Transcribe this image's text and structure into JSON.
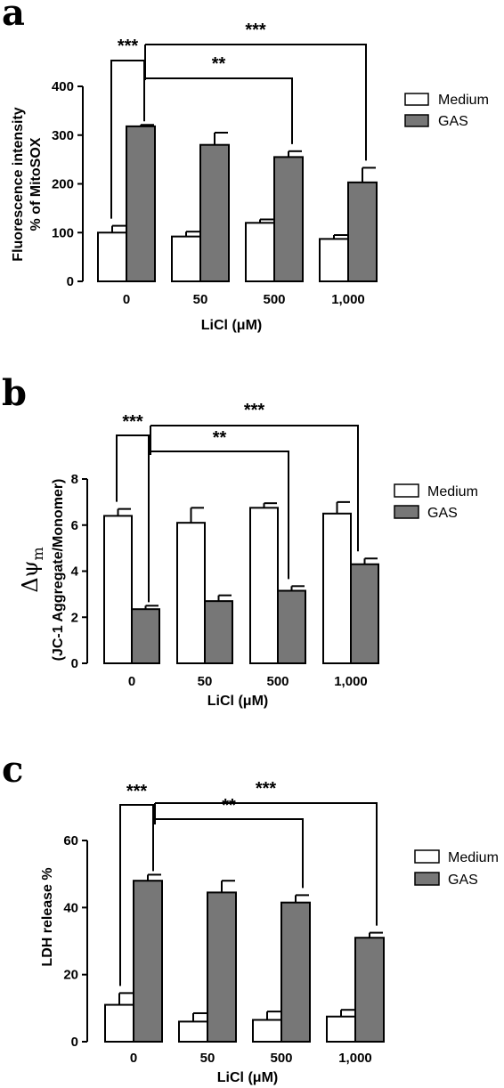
{
  "colors": {
    "medium": "#ffffff",
    "gas": "#777777",
    "stroke": "#000000"
  },
  "chart_data": [
    {
      "panel": "a",
      "type": "bar",
      "categories": [
        "0",
        "50",
        "500",
        "1,000"
      ],
      "series": [
        {
          "name": "Medium",
          "values": [
            100,
            92,
            120,
            87
          ],
          "errors": [
            14,
            10,
            7,
            8
          ]
        },
        {
          "name": "GAS",
          "values": [
            318,
            280,
            255,
            203
          ],
          "errors": [
            3,
            25,
            12,
            30
          ]
        }
      ],
      "xlabel": "LiCl (μM)",
      "ylabel_lines": [
        "Fluorescence intensity",
        "% of MitoSOX"
      ],
      "ylim": [
        0,
        400
      ],
      "yticks": [
        0,
        100,
        200,
        300,
        400
      ],
      "legend": "right",
      "significance": [
        {
          "label": "***",
          "from": 0,
          "to": 0
        },
        {
          "label": "**",
          "from": 0,
          "to": 2
        },
        {
          "label": "***",
          "from": 0,
          "to": 3
        }
      ]
    },
    {
      "panel": "b",
      "type": "bar",
      "categories": [
        "0",
        "50",
        "500",
        "1,000"
      ],
      "series": [
        {
          "name": "Medium",
          "values": [
            6.4,
            6.1,
            6.75,
            6.5
          ],
          "errors": [
            0.3,
            0.65,
            0.2,
            0.5
          ]
        },
        {
          "name": "GAS",
          "values": [
            2.35,
            2.7,
            3.15,
            4.3
          ],
          "errors": [
            0.15,
            0.25,
            0.2,
            0.25
          ]
        }
      ],
      "xlabel": "LiCl (μM)",
      "ylabel_lines": [
        "Δψm",
        "(JC-1 Aggregate/Monomer)"
      ],
      "ylim": [
        0,
        8
      ],
      "yticks": [
        0,
        2,
        4,
        6,
        8
      ],
      "legend": "right",
      "significance": [
        {
          "label": "***",
          "from": 0,
          "to": 0
        },
        {
          "label": "**",
          "from": 0,
          "to": 2
        },
        {
          "label": "***",
          "from": 0,
          "to": 3
        }
      ]
    },
    {
      "panel": "c",
      "type": "bar",
      "categories": [
        "0",
        "50",
        "500",
        "1,000"
      ],
      "series": [
        {
          "name": "Medium",
          "values": [
            11,
            6,
            6.5,
            7.5
          ],
          "errors": [
            3.5,
            2.5,
            2.5,
            2
          ]
        },
        {
          "name": "GAS",
          "values": [
            48,
            44.5,
            41.5,
            31
          ],
          "errors": [
            1.8,
            3.5,
            2.2,
            1.5
          ]
        }
      ],
      "xlabel": "LiCl (μM)",
      "ylabel_lines": [
        "LDH release %"
      ],
      "ylim": [
        0,
        60
      ],
      "yticks": [
        0,
        20,
        40,
        60
      ],
      "legend": "right",
      "significance": [
        {
          "label": "***",
          "from": 0,
          "to": 0
        },
        {
          "label": "**",
          "from": 0,
          "to": 2
        },
        {
          "label": "***",
          "from": 0,
          "to": 3
        }
      ]
    }
  ]
}
